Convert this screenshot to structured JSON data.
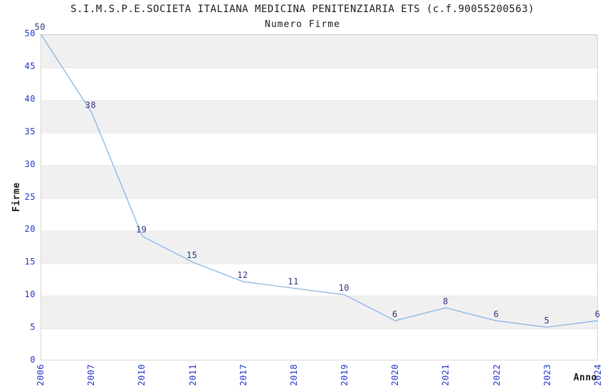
{
  "chart_data": {
    "type": "line",
    "title": "S.I.M.S.P.E.SOCIETA ITALIANA MEDICINA PENITENZIARIA ETS (c.f.90055200563)",
    "subtitle": "Numero Firme",
    "xlabel": "Anno",
    "ylabel": "Firme",
    "categories": [
      "2006",
      "2007",
      "2010",
      "2011",
      "2017",
      "2018",
      "2019",
      "2020",
      "2021",
      "2022",
      "2023",
      "2024"
    ],
    "values": [
      50,
      38,
      19,
      15,
      12,
      11,
      10,
      6,
      8,
      6,
      5,
      6
    ],
    "data_labels_shown": true,
    "ylim": [
      0,
      50
    ],
    "ytick_step": 5,
    "xtick_rotation_deg": 90,
    "grid": "horizontal alternating gray/white bands every 5 units",
    "legend_position": "none",
    "colors": {
      "line": "#7fb0e3",
      "axis_tick_label": "#2233cc",
      "data_label": "#333380",
      "band_gray": "#f0f0f0",
      "band_white": "#ffffff",
      "gridline": "#e7e7e7",
      "plot_border": "#d4d4d4",
      "text": "#1a1a1a",
      "background": "#ffffff"
    }
  }
}
